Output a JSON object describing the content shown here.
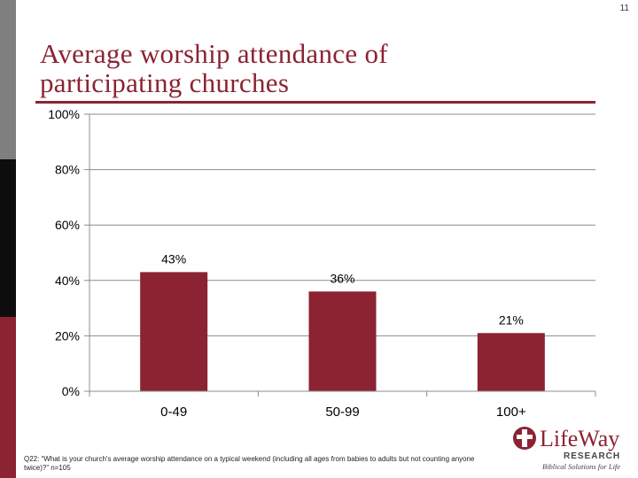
{
  "page_number": "11",
  "title_line1": "Average worship attendance of",
  "title_line2": "participating churches",
  "footnote": "Q22: “What is your church's average worship attendance on a typical weekend (including all ages from babies to adults but not counting anyone twice)?” n=105",
  "logo": {
    "brand": "LifeWay",
    "sub": "RESEARCH",
    "tagline": "Biblical Solutions for Life"
  },
  "colors": {
    "accent": "#8b2332",
    "bar": "#8b2332"
  },
  "chart_data": {
    "type": "bar",
    "title": "Average worship attendance of participating churches",
    "categories": [
      "0-49",
      "50-99",
      "100+"
    ],
    "values": [
      43,
      36,
      21
    ],
    "value_labels": [
      "43%",
      "36%",
      "21%"
    ],
    "ylim": [
      0,
      100
    ],
    "yticks": [
      0,
      20,
      40,
      60,
      80,
      100
    ],
    "ytick_labels": [
      "0%",
      "20%",
      "40%",
      "60%",
      "80%",
      "100%"
    ],
    "xlabel": "",
    "ylabel": "",
    "grid": true
  }
}
